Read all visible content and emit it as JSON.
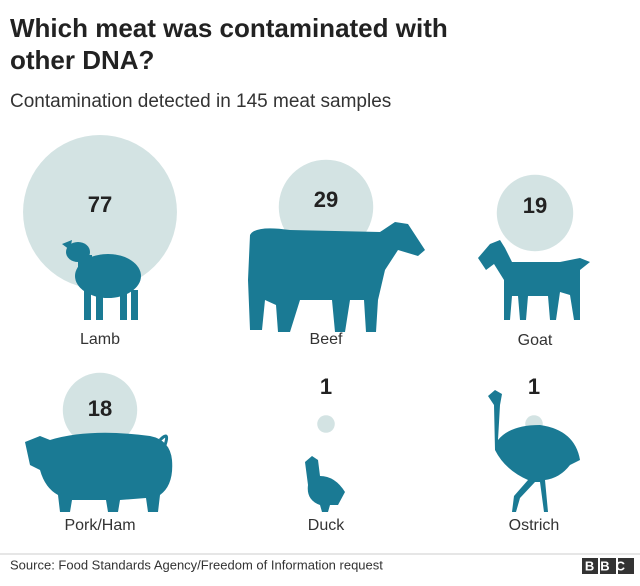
{
  "chart_data": {
    "type": "bubble",
    "title": "Which meat was contaminated with other DNA?",
    "subtitle": "Contamination detected in 145 meat samples",
    "categories": [
      "Lamb",
      "Beef",
      "Goat",
      "Pork/Ham",
      "Duck",
      "Ostrich"
    ],
    "values": [
      77,
      29,
      19,
      18,
      1,
      1
    ],
    "color": "#d3e3e3",
    "source": "Source: Food Standards Agency/Freedom of Information request",
    "brand": "BBC"
  }
}
